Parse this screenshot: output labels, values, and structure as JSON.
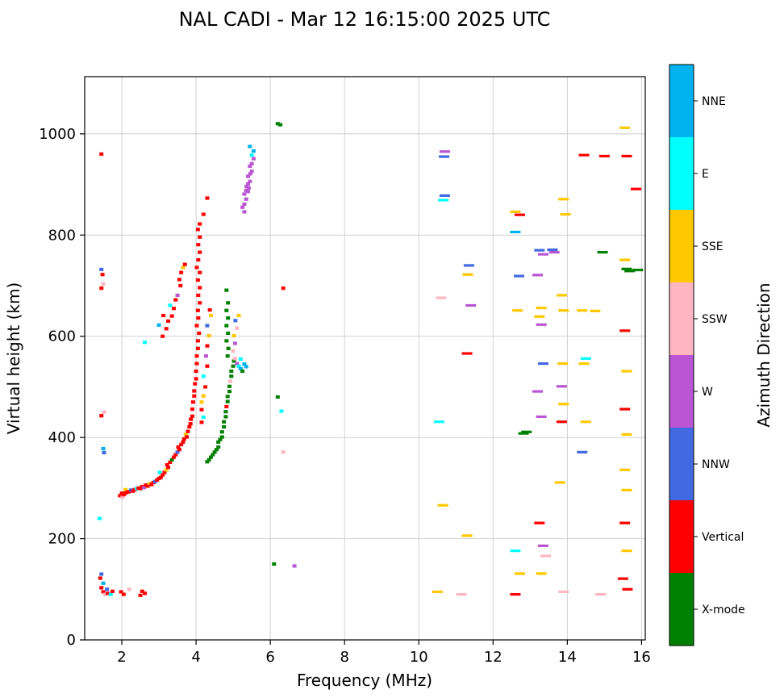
{
  "chart_data": {
    "type": "scatter",
    "title": "NAL CADI - Mar 12 16:15:00 2025 UTC",
    "xlabel": "Frequency (MHz)",
    "ylabel": "Virtual height (km)",
    "colorbar_label": "Azimuth Direction",
    "xlim": [
      1,
      16.1
    ],
    "ylim": [
      0,
      1113
    ],
    "x_ticks": [
      2,
      4,
      6,
      8,
      10,
      12,
      14,
      16
    ],
    "y_ticks": [
      0,
      200,
      400,
      600,
      800,
      1000
    ],
    "grid": true,
    "grid_color": "#cccccc",
    "legend_position": "right-colorbar",
    "directions": [
      {
        "label": "NNE",
        "color": "#00B2EE"
      },
      {
        "label": "E",
        "color": "#00FFFF"
      },
      {
        "label": "SSE",
        "color": "#FFC800"
      },
      {
        "label": "SSW",
        "color": "#FFB6C1"
      },
      {
        "label": "W",
        "color": "#BA55D3"
      },
      {
        "label": "NNW",
        "color": "#4169E1"
      },
      {
        "label": "Vertical",
        "color": "#FF0000"
      },
      {
        "label": "X-mode",
        "color": "#008000"
      }
    ],
    "points": [
      [
        1.45,
        130,
        5
      ],
      [
        1.42,
        122,
        6
      ],
      [
        1.5,
        112,
        0
      ],
      [
        1.45,
        103,
        6
      ],
      [
        1.5,
        95,
        6
      ],
      [
        1.55,
        90,
        3
      ],
      [
        1.6,
        100,
        5
      ],
      [
        1.62,
        92,
        6
      ],
      [
        1.7,
        90,
        1
      ],
      [
        1.75,
        96,
        6
      ],
      [
        1.98,
        95,
        6
      ],
      [
        2.05,
        90,
        6
      ],
      [
        2.2,
        100,
        3
      ],
      [
        2.5,
        88,
        6
      ],
      [
        2.55,
        96,
        6
      ],
      [
        2.62,
        92,
        6
      ],
      [
        1.45,
        960,
        6
      ],
      [
        1.45,
        732,
        5
      ],
      [
        1.48,
        722,
        6
      ],
      [
        1.5,
        703,
        3
      ],
      [
        1.45,
        695,
        6
      ],
      [
        1.52,
        450,
        3
      ],
      [
        1.45,
        443,
        6
      ],
      [
        1.5,
        378,
        0
      ],
      [
        1.52,
        370,
        5
      ],
      [
        1.4,
        240,
        1
      ],
      [
        1.95,
        285,
        6
      ],
      [
        2.0,
        290,
        6
      ],
      [
        2.02,
        282,
        3
      ],
      [
        2.05,
        287,
        6
      ],
      [
        2.1,
        290,
        6
      ],
      [
        2.1,
        297,
        2
      ],
      [
        2.15,
        292,
        6
      ],
      [
        2.2,
        293,
        6
      ],
      [
        2.25,
        296,
        5
      ],
      [
        2.3,
        294,
        6
      ],
      [
        2.35,
        297,
        6
      ],
      [
        2.4,
        299,
        1
      ],
      [
        2.45,
        300,
        6
      ],
      [
        2.5,
        299,
        6
      ],
      [
        2.55,
        303,
        6
      ],
      [
        2.6,
        301,
        4
      ],
      [
        2.65,
        306,
        6
      ],
      [
        2.7,
        304,
        6
      ],
      [
        2.75,
        309,
        2
      ],
      [
        2.8,
        307,
        6
      ],
      [
        2.85,
        311,
        6
      ],
      [
        2.9,
        313,
        5
      ],
      [
        2.95,
        316,
        6
      ],
      [
        3.0,
        319,
        6
      ],
      [
        3.02,
        331,
        1
      ],
      [
        3.05,
        321,
        6
      ],
      [
        3.1,
        326,
        6
      ],
      [
        3.15,
        331,
        6
      ],
      [
        3.2,
        336,
        2
      ],
      [
        3.22,
        346,
        6
      ],
      [
        3.25,
        341,
        6
      ],
      [
        3.3,
        351,
        6
      ],
      [
        3.35,
        356,
        7
      ],
      [
        3.4,
        361,
        6
      ],
      [
        3.45,
        366,
        6
      ],
      [
        3.5,
        371,
        5
      ],
      [
        3.52,
        381,
        6
      ],
      [
        3.55,
        376,
        6
      ],
      [
        3.6,
        386,
        6
      ],
      [
        3.65,
        391,
        6
      ],
      [
        3.68,
        397,
        6
      ],
      [
        3.72,
        406,
        2
      ],
      [
        3.75,
        401,
        6
      ],
      [
        3.78,
        412,
        6
      ],
      [
        3.82,
        421,
        6
      ],
      [
        3.85,
        427,
        6
      ],
      [
        3.86,
        436,
        6
      ],
      [
        3.9,
        442,
        6
      ],
      [
        3.9,
        456,
        6
      ],
      [
        3.92,
        470,
        6
      ],
      [
        3.95,
        482,
        6
      ],
      [
        3.95,
        492,
        6
      ],
      [
        3.97,
        506,
        6
      ],
      [
        4.0,
        516,
        6
      ],
      [
        4.0,
        531,
        6
      ],
      [
        4.02,
        546,
        6
      ],
      [
        2.62,
        588,
        1
      ],
      [
        3.0,
        622,
        0
      ],
      [
        3.12,
        641,
        6
      ],
      [
        3.3,
        661,
        1
      ],
      [
        3.5,
        681,
        4
      ],
      [
        3.58,
        700,
        6
      ],
      [
        3.55,
        712,
        6
      ],
      [
        3.6,
        726,
        6
      ],
      [
        3.65,
        736,
        2
      ],
      [
        3.7,
        742,
        6
      ],
      [
        3.45,
        672,
        6
      ],
      [
        3.4,
        655,
        6
      ],
      [
        3.35,
        640,
        6
      ],
      [
        3.25,
        630,
        6
      ],
      [
        3.2,
        615,
        6
      ],
      [
        3.1,
        600,
        6
      ],
      [
        4.02,
        561,
        6
      ],
      [
        4.05,
        576,
        6
      ],
      [
        4.05,
        591,
        6
      ],
      [
        4.08,
        606,
        6
      ],
      [
        4.02,
        621,
        6
      ],
      [
        4.06,
        636,
        6
      ],
      [
        4.05,
        651,
        6
      ],
      [
        4.1,
        666,
        6
      ],
      [
        4.06,
        681,
        6
      ],
      [
        4.1,
        696,
        6
      ],
      [
        4.05,
        711,
        6
      ],
      [
        4.1,
        726,
        6
      ],
      [
        4.02,
        736,
        6
      ],
      [
        4.06,
        751,
        6
      ],
      [
        4.1,
        766,
        6
      ],
      [
        4.06,
        781,
        6
      ],
      [
        4.1,
        796,
        6
      ],
      [
        4.05,
        811,
        6
      ],
      [
        4.1,
        822,
        6
      ],
      [
        4.2,
        841,
        6
      ],
      [
        4.3,
        873,
        6
      ],
      [
        4.15,
        470,
        2
      ],
      [
        4.2,
        482,
        2
      ],
      [
        4.25,
        500,
        6
      ],
      [
        4.2,
        521,
        1
      ],
      [
        4.3,
        541,
        6
      ],
      [
        4.27,
        561,
        4
      ],
      [
        4.3,
        581,
        6
      ],
      [
        4.35,
        601,
        2
      ],
      [
        4.3,
        621,
        5
      ],
      [
        4.4,
        641,
        2
      ],
      [
        4.37,
        652,
        6
      ],
      [
        4.15,
        455,
        6
      ],
      [
        4.2,
        440,
        1
      ],
      [
        4.15,
        430,
        6
      ],
      [
        4.3,
        352,
        7
      ],
      [
        4.35,
        356,
        7
      ],
      [
        4.4,
        361,
        7
      ],
      [
        4.45,
        366,
        7
      ],
      [
        4.5,
        371,
        7
      ],
      [
        4.55,
        376,
        7
      ],
      [
        4.6,
        381,
        7
      ],
      [
        4.6,
        391,
        7
      ],
      [
        4.65,
        396,
        7
      ],
      [
        4.7,
        401,
        7
      ],
      [
        4.7,
        411,
        7
      ],
      [
        4.75,
        421,
        7
      ],
      [
        4.75,
        431,
        7
      ],
      [
        4.8,
        441,
        7
      ],
      [
        4.8,
        451,
        7
      ],
      [
        4.82,
        461,
        6
      ],
      [
        4.85,
        471,
        7
      ],
      [
        4.85,
        481,
        7
      ],
      [
        4.9,
        491,
        7
      ],
      [
        4.9,
        501,
        7
      ],
      [
        4.92,
        511,
        3
      ],
      [
        4.95,
        521,
        7
      ],
      [
        4.95,
        531,
        7
      ],
      [
        5.0,
        541,
        7
      ],
      [
        5.02,
        551,
        7
      ],
      [
        5.05,
        556,
        3
      ],
      [
        5.1,
        546,
        4
      ],
      [
        5.15,
        541,
        1
      ],
      [
        5.2,
        536,
        0
      ],
      [
        5.25,
        531,
        7
      ],
      [
        4.85,
        561,
        7
      ],
      [
        4.87,
        576,
        7
      ],
      [
        4.82,
        591,
        7
      ],
      [
        4.86,
        606,
        7
      ],
      [
        4.82,
        621,
        7
      ],
      [
        4.86,
        636,
        7
      ],
      [
        4.82,
        651,
        7
      ],
      [
        4.86,
        666,
        7
      ],
      [
        4.82,
        691,
        7
      ],
      [
        5.0,
        571,
        3
      ],
      [
        5.05,
        586,
        4
      ],
      [
        5.02,
        601,
        2
      ],
      [
        5.1,
        616,
        3
      ],
      [
        5.06,
        631,
        5
      ],
      [
        5.15,
        641,
        2
      ],
      [
        5.2,
        555,
        1
      ],
      [
        5.3,
        545,
        0
      ],
      [
        5.35,
        540,
        0
      ],
      [
        5.25,
        855,
        4
      ],
      [
        5.3,
        861,
        4
      ],
      [
        5.35,
        871,
        4
      ],
      [
        5.3,
        881,
        4
      ],
      [
        5.4,
        886,
        4
      ],
      [
        5.36,
        896,
        4
      ],
      [
        5.4,
        901,
        4
      ],
      [
        5.45,
        906,
        4
      ],
      [
        5.4,
        916,
        4
      ],
      [
        5.46,
        921,
        4
      ],
      [
        5.5,
        926,
        4
      ],
      [
        5.45,
        936,
        4
      ],
      [
        5.5,
        941,
        4
      ],
      [
        5.55,
        951,
        4
      ],
      [
        5.5,
        958,
        1
      ],
      [
        5.55,
        966,
        0
      ],
      [
        5.45,
        975,
        0
      ],
      [
        5.3,
        846,
        4
      ],
      [
        5.35,
        888,
        4
      ],
      [
        5.42,
        893,
        4
      ],
      [
        6.2,
        1020,
        7
      ],
      [
        6.27,
        1018,
        7
      ],
      [
        6.35,
        695,
        6
      ],
      [
        6.2,
        480,
        7
      ],
      [
        6.3,
        452,
        1
      ],
      [
        6.35,
        371,
        3
      ],
      [
        6.1,
        150,
        7
      ],
      [
        6.65,
        146,
        4
      ],
      [
        10.7,
        965,
        4,
        1
      ],
      [
        10.68,
        955,
        5,
        1
      ],
      [
        10.7,
        878,
        5,
        1
      ],
      [
        10.66,
        869,
        1,
        1
      ],
      [
        10.6,
        676,
        3,
        1
      ],
      [
        10.55,
        431,
        1,
        1
      ],
      [
        10.65,
        266,
        2,
        1
      ],
      [
        10.5,
        95,
        2,
        1
      ],
      [
        11.35,
        740,
        5,
        1
      ],
      [
        11.32,
        722,
        2,
        1
      ],
      [
        11.4,
        661,
        4,
        1
      ],
      [
        11.3,
        566,
        6,
        1
      ],
      [
        11.3,
        206,
        2,
        1
      ],
      [
        11.15,
        90,
        3,
        1
      ],
      [
        12.6,
        846,
        2,
        1
      ],
      [
        12.72,
        840,
        6,
        1
      ],
      [
        12.6,
        806,
        0,
        1
      ],
      [
        12.7,
        719,
        5,
        1
      ],
      [
        12.66,
        651,
        2,
        1
      ],
      [
        12.9,
        411,
        7,
        1
      ],
      [
        12.82,
        408,
        7,
        1
      ],
      [
        12.6,
        176,
        1,
        1
      ],
      [
        12.72,
        131,
        2,
        1
      ],
      [
        12.6,
        90,
        6,
        1
      ],
      [
        13.25,
        770,
        5,
        1
      ],
      [
        13.35,
        762,
        4,
        1
      ],
      [
        13.2,
        721,
        4,
        1
      ],
      [
        13.3,
        656,
        2,
        1
      ],
      [
        13.25,
        639,
        2,
        1
      ],
      [
        13.3,
        623,
        4,
        1
      ],
      [
        13.35,
        546,
        5,
        1
      ],
      [
        13.2,
        491,
        4,
        1
      ],
      [
        13.3,
        441,
        4,
        1
      ],
      [
        13.25,
        231,
        6,
        1
      ],
      [
        13.35,
        186,
        4,
        1
      ],
      [
        13.42,
        166,
        3,
        1
      ],
      [
        13.3,
        131,
        2,
        1
      ],
      [
        13.6,
        771,
        5,
        1
      ],
      [
        13.65,
        766,
        4,
        1
      ],
      [
        13.9,
        871,
        2,
        1
      ],
      [
        13.95,
        841,
        2,
        1
      ],
      [
        13.85,
        681,
        2,
        1
      ],
      [
        13.9,
        651,
        2,
        1
      ],
      [
        13.88,
        546,
        2,
        1
      ],
      [
        13.85,
        501,
        4,
        1
      ],
      [
        13.9,
        466,
        2,
        1
      ],
      [
        13.85,
        431,
        6,
        1
      ],
      [
        13.8,
        311,
        2,
        1
      ],
      [
        13.9,
        95,
        3,
        1
      ],
      [
        14.45,
        958,
        6,
        1
      ],
      [
        14.4,
        651,
        2,
        1
      ],
      [
        14.5,
        556,
        1,
        1
      ],
      [
        14.45,
        546,
        2,
        1
      ],
      [
        14.5,
        431,
        2,
        1
      ],
      [
        14.4,
        371,
        5,
        1
      ],
      [
        14.75,
        650,
        2,
        1
      ],
      [
        14.95,
        766,
        7,
        1
      ],
      [
        15.0,
        956,
        6,
        1
      ],
      [
        14.9,
        90,
        3,
        1
      ],
      [
        15.55,
        1012,
        2,
        1
      ],
      [
        15.6,
        956,
        6,
        1
      ],
      [
        15.55,
        751,
        2,
        1
      ],
      [
        15.6,
        733,
        7,
        1
      ],
      [
        15.68,
        729,
        7,
        1
      ],
      [
        15.55,
        611,
        6,
        1
      ],
      [
        15.6,
        531,
        2,
        1
      ],
      [
        15.55,
        456,
        6,
        1
      ],
      [
        15.6,
        406,
        2,
        1
      ],
      [
        15.55,
        336,
        2,
        1
      ],
      [
        15.6,
        296,
        2,
        1
      ],
      [
        15.55,
        231,
        6,
        1
      ],
      [
        15.6,
        176,
        2,
        1
      ],
      [
        15.5,
        121,
        6,
        1
      ],
      [
        15.62,
        100,
        6,
        1
      ],
      [
        15.85,
        891,
        6,
        1
      ],
      [
        15.9,
        731,
        7,
        1
      ]
    ]
  }
}
